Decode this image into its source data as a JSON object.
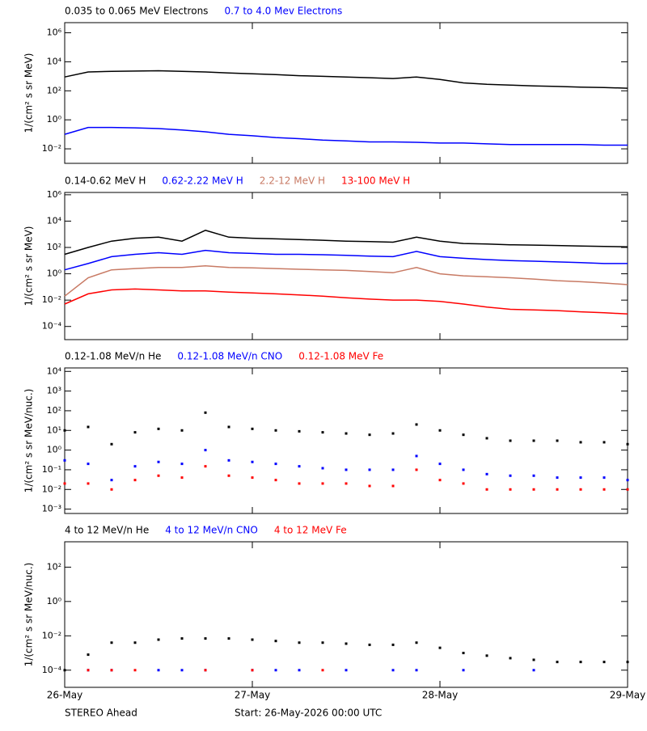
{
  "chart_data": [
    {
      "type": "line",
      "ylabel": "1/(cm² s sr MeV)",
      "ylog": true,
      "ylim": [
        0.001,
        5000000
      ],
      "yticks": [
        {
          "value": 0.01,
          "label": "10⁻²"
        },
        {
          "value": 1,
          "label": "10⁰"
        },
        {
          "value": 100,
          "label": "10²"
        },
        {
          "value": 10000,
          "label": "10⁴"
        },
        {
          "value": 1000000,
          "label": "10⁶"
        }
      ],
      "xlim": [
        0,
        72
      ],
      "x": [
        0,
        3,
        6,
        9,
        12,
        15,
        18,
        21,
        24,
        27,
        30,
        33,
        36,
        39,
        42,
        45,
        48,
        51,
        54,
        57,
        60,
        63,
        66,
        69,
        72
      ],
      "series": [
        {
          "name": "0.035 to 0.065 MeV Electrons",
          "color": "#000000",
          "values": [
            900,
            2000,
            2200,
            2300,
            2400,
            2200,
            2000,
            1700,
            1500,
            1300,
            1100,
            1000,
            900,
            800,
            700,
            900,
            600,
            350,
            280,
            250,
            220,
            200,
            180,
            170,
            150
          ]
        },
        {
          "name": "0.7 to 4.0 Mev Electrons",
          "color": "#0000ff",
          "values": [
            0.1,
            0.3,
            0.3,
            0.28,
            0.25,
            0.2,
            0.15,
            0.1,
            0.08,
            0.06,
            0.05,
            0.04,
            0.035,
            0.03,
            0.03,
            0.028,
            0.025,
            0.025,
            0.022,
            0.02,
            0.02,
            0.02,
            0.02,
            0.018,
            0.018
          ]
        }
      ]
    },
    {
      "type": "line",
      "ylabel": "1/(cm² s sr MeV)",
      "ylog": true,
      "ylim": [
        1e-05,
        1500000
      ],
      "yticks": [
        {
          "value": 0.0001,
          "label": "10⁻⁴"
        },
        {
          "value": 0.01,
          "label": "10⁻²"
        },
        {
          "value": 1,
          "label": "10⁰"
        },
        {
          "value": 100,
          "label": "10²"
        },
        {
          "value": 10000,
          "label": "10⁴"
        },
        {
          "value": 1000000,
          "label": "10⁶"
        }
      ],
      "xlim": [
        0,
        72
      ],
      "x": [
        0,
        3,
        6,
        9,
        12,
        15,
        18,
        21,
        24,
        27,
        30,
        33,
        36,
        39,
        42,
        45,
        48,
        51,
        54,
        57,
        60,
        63,
        66,
        69,
        72
      ],
      "series": [
        {
          "name": "0.14-0.62 MeV H",
          "color": "#000000",
          "values": [
            30,
            100,
            300,
            500,
            600,
            300,
            2000,
            600,
            500,
            450,
            400,
            350,
            300,
            280,
            250,
            600,
            300,
            200,
            180,
            160,
            150,
            140,
            130,
            120,
            110
          ]
        },
        {
          "name": "0.62-2.22 MeV H",
          "color": "#0000ff",
          "values": [
            2,
            6,
            20,
            30,
            40,
            30,
            60,
            40,
            35,
            30,
            30,
            28,
            25,
            22,
            20,
            50,
            20,
            15,
            12,
            10,
            9,
            8,
            7,
            6,
            6
          ]
        },
        {
          "name": "2.2-12 MeV H",
          "color": "#c87a64",
          "values": [
            0.02,
            0.5,
            2,
            2.5,
            3,
            3,
            4,
            3,
            2.8,
            2.5,
            2.2,
            2,
            1.8,
            1.5,
            1.2,
            3,
            1,
            0.7,
            0.6,
            0.5,
            0.4,
            0.3,
            0.25,
            0.2,
            0.15
          ]
        },
        {
          "name": "13-100 MeV H",
          "color": "#ff0000",
          "values": [
            0.005,
            0.03,
            0.06,
            0.07,
            0.06,
            0.05,
            0.05,
            0.04,
            0.035,
            0.03,
            0.025,
            0.02,
            0.015,
            0.012,
            0.01,
            0.01,
            0.008,
            0.005,
            0.003,
            0.002,
            0.0018,
            0.0016,
            0.0013,
            0.0011,
            0.0009
          ]
        }
      ]
    },
    {
      "type": "scatter",
      "ylabel": "1/(cm² s sr MeV/nuc.)",
      "ylog": true,
      "ylim": [
        0.0006,
        15000
      ],
      "yticks": [
        {
          "value": 0.001,
          "label": "10⁻³"
        },
        {
          "value": 0.01,
          "label": "10⁻²"
        },
        {
          "value": 0.1,
          "label": "10⁻¹"
        },
        {
          "value": 1,
          "label": "10⁰"
        },
        {
          "value": 10,
          "label": "10¹"
        },
        {
          "value": 100,
          "label": "10²"
        },
        {
          "value": 1000,
          "label": "10³"
        },
        {
          "value": 10000,
          "label": "10⁴"
        }
      ],
      "xlim": [
        0,
        72
      ],
      "x": [
        0,
        3,
        6,
        9,
        12,
        15,
        18,
        21,
        24,
        27,
        30,
        33,
        36,
        39,
        42,
        45,
        48,
        51,
        54,
        57,
        60,
        63,
        66,
        69,
        72
      ],
      "series": [
        {
          "name": "0.12-1.08 MeV/n He",
          "color": "#000000",
          "values": [
            10,
            15,
            2,
            8,
            12,
            10,
            80,
            15,
            12,
            10,
            9,
            8,
            7,
            6,
            7,
            20,
            10,
            6,
            4,
            3,
            3,
            3,
            2.5,
            2.5,
            2
          ]
        },
        {
          "name": "0.12-1.08 MeV/n CNO",
          "color": "#0000ff",
          "values": [
            0.3,
            0.2,
            0.03,
            0.15,
            0.25,
            0.2,
            1,
            0.3,
            0.25,
            0.2,
            0.15,
            0.12,
            0.1,
            0.1,
            0.1,
            0.5,
            0.2,
            0.1,
            0.06,
            0.05,
            0.05,
            0.04,
            0.04,
            0.04,
            0.03
          ]
        },
        {
          "name": "0.12-1.08 MeV Fe",
          "color": "#ff0000",
          "values": [
            0.02,
            0.02,
            0.01,
            0.03,
            0.05,
            0.04,
            0.15,
            0.05,
            0.04,
            0.03,
            0.02,
            0.02,
            0.02,
            0.015,
            0.015,
            0.1,
            0.03,
            0.02,
            0.01,
            0.01,
            0.01,
            0.01,
            0.01,
            0.01,
            0.01
          ]
        }
      ]
    },
    {
      "type": "scatter",
      "ylabel": "1/(cm² s sr MeV/nuc.)",
      "ylog": true,
      "ylim": [
        1e-05,
        3000
      ],
      "yticks": [
        {
          "value": 0.0001,
          "label": "10⁻⁴"
        },
        {
          "value": 0.01,
          "label": "10⁻²"
        },
        {
          "value": 1,
          "label": "10⁰"
        },
        {
          "value": 100,
          "label": "10²"
        }
      ],
      "xlim": [
        0,
        72
      ],
      "xticks": [
        {
          "value": 0,
          "label": "26-May"
        },
        {
          "value": 24,
          "label": "27-May"
        },
        {
          "value": 48,
          "label": "28-May"
        },
        {
          "value": 72,
          "label": "29-May"
        }
      ],
      "x": [
        0,
        3,
        6,
        9,
        12,
        15,
        18,
        21,
        24,
        27,
        30,
        33,
        36,
        39,
        42,
        45,
        48,
        51,
        54,
        57,
        60,
        63,
        66,
        69,
        72
      ],
      "series": [
        {
          "name": "4 to 12 MeV/n He",
          "color": "#000000",
          "values": [
            0.0001,
            0.0008,
            0.004,
            0.004,
            0.006,
            0.007,
            0.007,
            0.007,
            0.006,
            0.005,
            0.004,
            0.004,
            0.0035,
            0.003,
            0.003,
            0.004,
            0.002,
            0.001,
            0.0007,
            0.0005,
            0.0004,
            0.0003,
            0.0003,
            0.0003,
            0.0003
          ]
        },
        {
          "name": "4 to 12 MeV/n CNO",
          "color": "#0000ff",
          "values": [
            null,
            0.0001,
            0.0001,
            null,
            0.0001,
            0.0001,
            0.0001,
            null,
            0.0001,
            0.0001,
            0.0001,
            null,
            0.0001,
            null,
            0.0001,
            0.0001,
            null,
            0.0001,
            null,
            null,
            0.0001,
            null,
            null,
            null,
            null
          ]
        },
        {
          "name": "4 to 12 MeV Fe",
          "color": "#ff0000",
          "values": [
            null,
            0.0001,
            0.0001,
            0.0001,
            null,
            null,
            0.0001,
            null,
            0.0001,
            null,
            null,
            0.0001,
            null,
            null,
            null,
            null,
            null,
            null,
            null,
            null,
            null,
            null,
            null,
            null,
            null
          ]
        }
      ]
    }
  ],
  "footer": {
    "spacecraft": "STEREO Ahead",
    "start": "Start: 26-May-2026 00:00 UTC"
  }
}
